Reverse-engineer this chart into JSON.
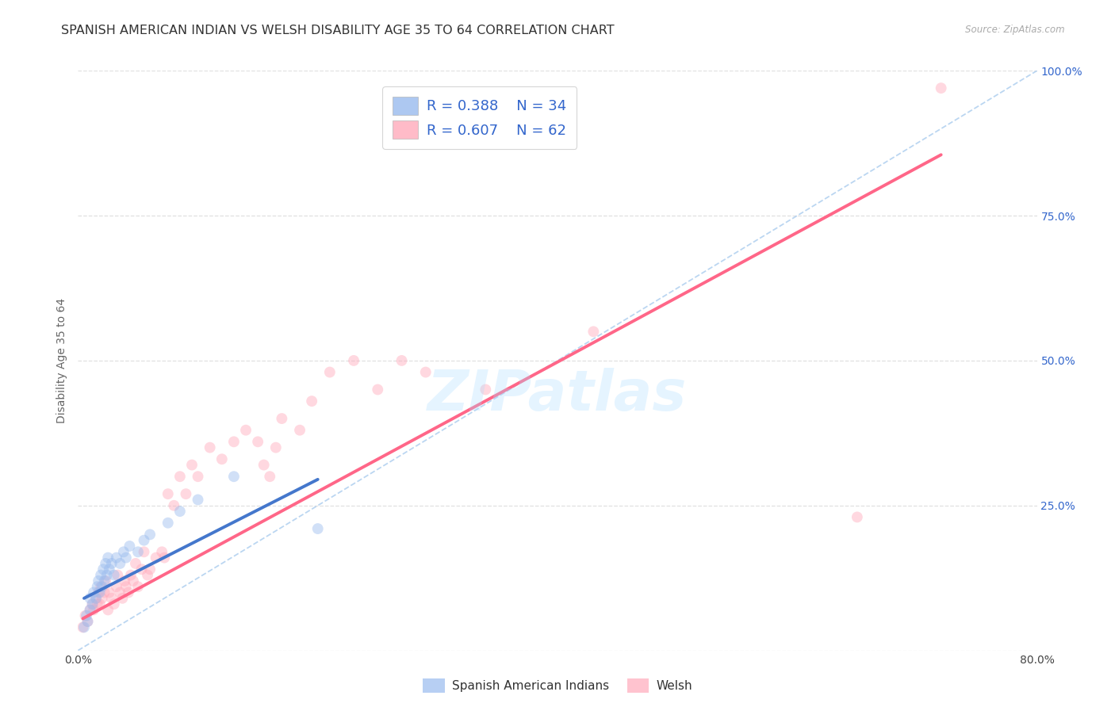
{
  "title": "SPANISH AMERICAN INDIAN VS WELSH DISABILITY AGE 35 TO 64 CORRELATION CHART",
  "source": "Source: ZipAtlas.com",
  "ylabel": "Disability Age 35 to 64",
  "xlim": [
    0.0,
    0.8
  ],
  "ylim": [
    0.0,
    1.0
  ],
  "yticks": [
    0.0,
    0.25,
    0.5,
    0.75,
    1.0
  ],
  "ytick_labels": [
    "",
    "25.0%",
    "50.0%",
    "75.0%",
    "100.0%"
  ],
  "xticks": [
    0.0,
    0.1,
    0.2,
    0.3,
    0.4,
    0.5,
    0.6,
    0.7,
    0.8
  ],
  "xtick_labels": [
    "0.0%",
    "",
    "",
    "",
    "",
    "",
    "",
    "",
    "80.0%"
  ],
  "background_color": "#ffffff",
  "grid_color": "#e0e0e0",
  "watermark": "ZIPatlas",
  "legend_r1": "0.388",
  "legend_n1": "34",
  "legend_r2": "0.607",
  "legend_n2": "62",
  "blue_color": "#99bbee",
  "pink_color": "#ffaabb",
  "blue_line_color": "#4477cc",
  "pink_line_color": "#ff6688",
  "ref_line_color": "#aaccee",
  "legend_text_color": "#3366cc",
  "title_fontsize": 11.5,
  "axis_label_fontsize": 10,
  "tick_fontsize": 10,
  "marker_size": 100,
  "marker_alpha": 0.45,
  "blue_scatter_x": [
    0.005,
    0.007,
    0.008,
    0.01,
    0.01,
    0.012,
    0.013,
    0.015,
    0.016,
    0.017,
    0.018,
    0.019,
    0.02,
    0.021,
    0.022,
    0.023,
    0.024,
    0.025,
    0.026,
    0.028,
    0.03,
    0.032,
    0.035,
    0.038,
    0.04,
    0.043,
    0.05,
    0.055,
    0.06,
    0.075,
    0.085,
    0.1,
    0.13,
    0.2
  ],
  "blue_scatter_y": [
    0.04,
    0.06,
    0.05,
    0.07,
    0.09,
    0.08,
    0.1,
    0.09,
    0.11,
    0.12,
    0.1,
    0.13,
    0.11,
    0.14,
    0.12,
    0.15,
    0.13,
    0.16,
    0.14,
    0.15,
    0.13,
    0.16,
    0.15,
    0.17,
    0.16,
    0.18,
    0.17,
    0.19,
    0.2,
    0.22,
    0.24,
    0.26,
    0.3,
    0.21
  ],
  "pink_scatter_x": [
    0.004,
    0.006,
    0.008,
    0.01,
    0.012,
    0.013,
    0.015,
    0.016,
    0.017,
    0.018,
    0.019,
    0.02,
    0.022,
    0.023,
    0.025,
    0.026,
    0.028,
    0.03,
    0.032,
    0.033,
    0.035,
    0.037,
    0.039,
    0.04,
    0.042,
    0.044,
    0.046,
    0.048,
    0.05,
    0.053,
    0.055,
    0.058,
    0.06,
    0.065,
    0.07,
    0.072,
    0.075,
    0.08,
    0.085,
    0.09,
    0.095,
    0.1,
    0.11,
    0.12,
    0.13,
    0.14,
    0.15,
    0.155,
    0.16,
    0.165,
    0.17,
    0.185,
    0.195,
    0.21,
    0.23,
    0.25,
    0.27,
    0.29,
    0.34,
    0.43,
    0.65,
    0.72
  ],
  "pink_scatter_y": [
    0.04,
    0.06,
    0.05,
    0.07,
    0.08,
    0.07,
    0.09,
    0.08,
    0.1,
    0.08,
    0.11,
    0.09,
    0.1,
    0.12,
    0.07,
    0.1,
    0.09,
    0.08,
    0.11,
    0.13,
    0.1,
    0.09,
    0.12,
    0.11,
    0.1,
    0.13,
    0.12,
    0.15,
    0.11,
    0.14,
    0.17,
    0.13,
    0.14,
    0.16,
    0.17,
    0.16,
    0.27,
    0.25,
    0.3,
    0.27,
    0.32,
    0.3,
    0.35,
    0.33,
    0.36,
    0.38,
    0.36,
    0.32,
    0.3,
    0.35,
    0.4,
    0.38,
    0.43,
    0.48,
    0.5,
    0.45,
    0.5,
    0.48,
    0.45,
    0.55,
    0.23,
    0.97
  ],
  "blue_line_x": [
    0.005,
    0.2
  ],
  "blue_line_y": [
    0.09,
    0.295
  ],
  "pink_line_x": [
    0.004,
    0.72
  ],
  "pink_line_y": [
    0.055,
    0.855
  ],
  "ref_line_x": [
    0.0,
    0.8
  ],
  "ref_line_y": [
    0.0,
    1.0
  ]
}
